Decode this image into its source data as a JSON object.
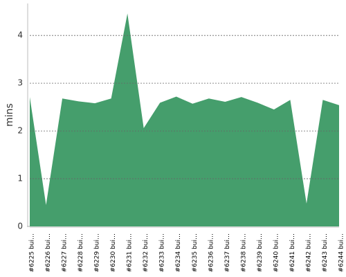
{
  "chart_data": {
    "type": "area",
    "y_label": "mins",
    "categories": [
      "#6225 bui…",
      "#6226 bui…",
      "#6227 bui…",
      "#6228 bui…",
      "#6229 bui…",
      "#6230 bui…",
      "#6231 bui…",
      "#6232 bui…",
      "#6233 bui…",
      "#6234 bui…",
      "#6235 bui…",
      "#6236 bui…",
      "#6237 bui…",
      "#6238 bui…",
      "#6239 bui…",
      "#6240 bui…",
      "#6241 bui…",
      "#6242 bui…",
      "#6243 bui…",
      "#6244 bui…"
    ],
    "values": [
      2.71,
      0.45,
      2.68,
      2.62,
      2.58,
      2.68,
      4.46,
      2.06,
      2.59,
      2.72,
      2.57,
      2.68,
      2.61,
      2.71,
      2.59,
      2.45,
      2.65,
      0.48,
      2.65,
      2.54
    ],
    "color": "#459e6c",
    "ylim": [
      0,
      4.67
    ],
    "yticks": [
      0,
      1,
      2,
      3,
      4
    ],
    "grid": true
  }
}
